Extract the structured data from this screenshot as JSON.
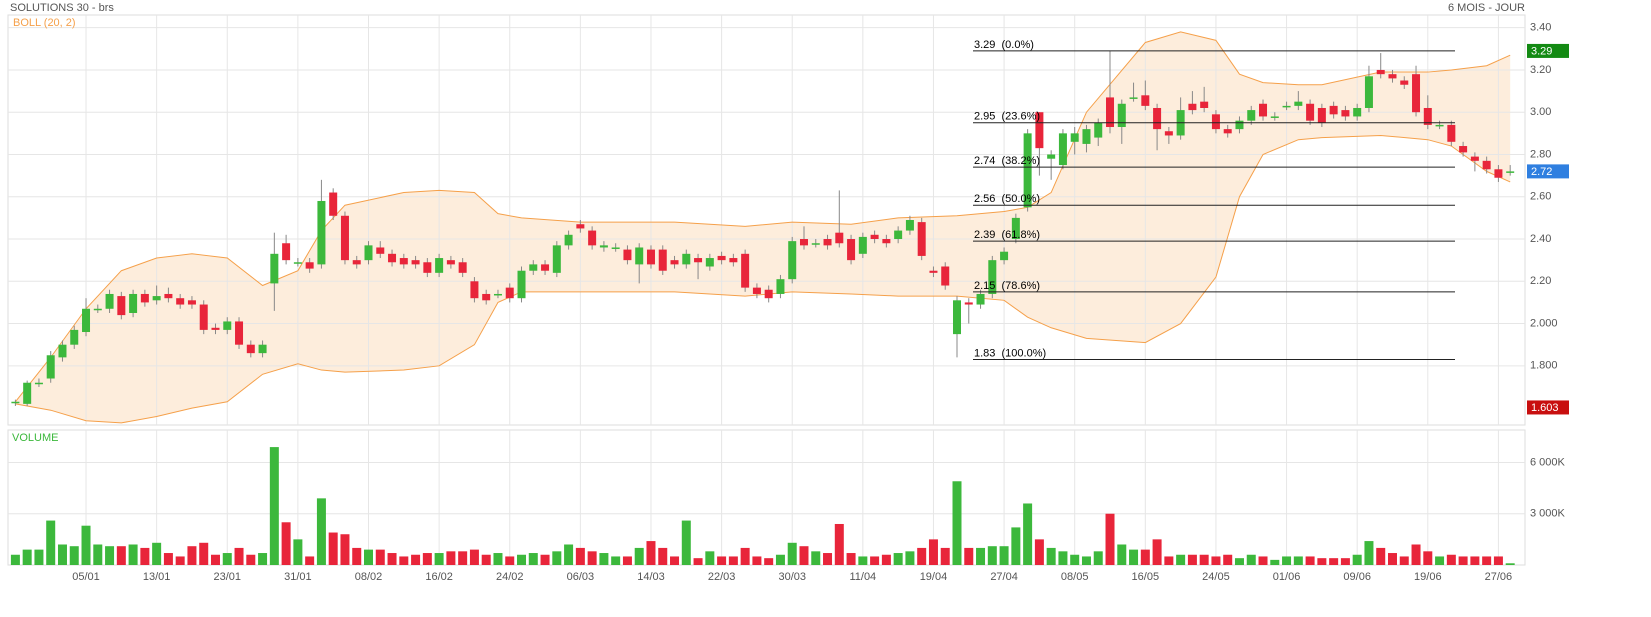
{
  "chart_data": {
    "type": "candlestick",
    "title": "SOLUTIONS 30 - brs",
    "period": "6 MOIS - JOUR",
    "indicator": "BOLL (20, 2)",
    "volume_title": "VOLUME",
    "up_color": "#3cb83c",
    "down_color": "#e8253a",
    "band_color": "#f5a04a",
    "band_fill": "#fde9d3",
    "categories": [
      null,
      null,
      null,
      null,
      null,
      null,
      "05/01",
      null,
      null,
      null,
      null,
      null,
      "13/01",
      null,
      null,
      null,
      null,
      null,
      "23/01",
      null,
      null,
      null,
      null,
      null,
      "31/01",
      null,
      null,
      null,
      null,
      null,
      "08/02",
      null,
      null,
      null,
      null,
      null,
      "16/02",
      null,
      null,
      null,
      null,
      null,
      "24/02",
      null,
      null,
      null,
      null,
      null,
      "06/03",
      null,
      null,
      null,
      null,
      null,
      "14/03",
      null,
      null,
      null,
      null,
      null,
      "22/03",
      null,
      null,
      null,
      null,
      null,
      "30/03",
      null,
      null,
      null,
      null,
      null,
      "11/04",
      null,
      null,
      null,
      null,
      null,
      "19/04",
      null,
      null,
      null,
      null,
      null,
      "27/04",
      null,
      null,
      null,
      null,
      null,
      "08/05",
      null,
      null,
      null,
      null,
      null,
      "16/05",
      null,
      null,
      null,
      null,
      null,
      "24/05",
      null,
      null,
      null,
      null,
      null,
      "01/06",
      null,
      null,
      null,
      null,
      null,
      "09/06",
      null,
      null,
      null,
      null,
      null,
      "19/06",
      null,
      null,
      null,
      null,
      null,
      "27/06",
      null
    ],
    "ohlc": [
      [
        1.63,
        1.64,
        1.61,
        1.63
      ],
      [
        1.62,
        1.73,
        1.61,
        1.72
      ],
      [
        1.72,
        1.74,
        1.7,
        1.72
      ],
      [
        1.74,
        1.87,
        1.72,
        1.85
      ],
      [
        1.84,
        1.92,
        1.82,
        1.9
      ],
      [
        1.9,
        1.99,
        1.88,
        1.97
      ],
      [
        1.96,
        2.12,
        1.94,
        2.07
      ],
      [
        2.07,
        2.09,
        2.05,
        2.07
      ],
      [
        2.07,
        2.16,
        2.05,
        2.14
      ],
      [
        2.13,
        2.15,
        2.02,
        2.04
      ],
      [
        2.05,
        2.16,
        2.03,
        2.14
      ],
      [
        2.14,
        2.16,
        2.08,
        2.1
      ],
      [
        2.11,
        2.18,
        2.09,
        2.13
      ],
      [
        2.14,
        2.17,
        2.1,
        2.12
      ],
      [
        2.12,
        2.14,
        2.07,
        2.09
      ],
      [
        2.11,
        2.13,
        2.07,
        2.09
      ],
      [
        2.09,
        2.11,
        1.95,
        1.97
      ],
      [
        1.98,
        2.0,
        1.95,
        1.97
      ],
      [
        1.97,
        2.03,
        1.95,
        2.01
      ],
      [
        2.01,
        2.03,
        1.88,
        1.9
      ],
      [
        1.9,
        1.92,
        1.84,
        1.86
      ],
      [
        1.86,
        1.92,
        1.84,
        1.9
      ],
      [
        2.19,
        2.43,
        2.06,
        2.33
      ],
      [
        2.38,
        2.42,
        2.28,
        2.3
      ],
      [
        2.29,
        2.31,
        2.27,
        2.29
      ],
      [
        2.29,
        2.31,
        2.24,
        2.26
      ],
      [
        2.28,
        2.68,
        2.26,
        2.58
      ],
      [
        2.62,
        2.64,
        2.49,
        2.51
      ],
      [
        2.51,
        2.53,
        2.28,
        2.3
      ],
      [
        2.3,
        2.32,
        2.26,
        2.28
      ],
      [
        2.3,
        2.39,
        2.28,
        2.37
      ],
      [
        2.36,
        2.39,
        2.31,
        2.33
      ],
      [
        2.33,
        2.35,
        2.27,
        2.29
      ],
      [
        2.31,
        2.33,
        2.26,
        2.28
      ],
      [
        2.3,
        2.32,
        2.26,
        2.28
      ],
      [
        2.29,
        2.31,
        2.22,
        2.24
      ],
      [
        2.24,
        2.33,
        2.22,
        2.31
      ],
      [
        2.3,
        2.32,
        2.26,
        2.28
      ],
      [
        2.29,
        2.31,
        2.22,
        2.24
      ],
      [
        2.2,
        2.22,
        2.1,
        2.12
      ],
      [
        2.14,
        2.16,
        2.09,
        2.11
      ],
      [
        2.14,
        2.16,
        2.12,
        2.14
      ],
      [
        2.17,
        2.19,
        2.1,
        2.12
      ],
      [
        2.12,
        2.27,
        2.1,
        2.25
      ],
      [
        2.25,
        2.3,
        2.23,
        2.28
      ],
      [
        2.28,
        2.3,
        2.23,
        2.25
      ],
      [
        2.24,
        2.39,
        2.22,
        2.37
      ],
      [
        2.37,
        2.44,
        2.35,
        2.42
      ],
      [
        2.47,
        2.49,
        2.43,
        2.45
      ],
      [
        2.44,
        2.46,
        2.35,
        2.37
      ],
      [
        2.36,
        2.39,
        2.34,
        2.37
      ],
      [
        2.36,
        2.38,
        2.34,
        2.36
      ],
      [
        2.35,
        2.37,
        2.28,
        2.3
      ],
      [
        2.28,
        2.38,
        2.19,
        2.36
      ],
      [
        2.35,
        2.37,
        2.26,
        2.28
      ],
      [
        2.35,
        2.37,
        2.23,
        2.25
      ],
      [
        2.3,
        2.32,
        2.26,
        2.28
      ],
      [
        2.28,
        2.35,
        2.26,
        2.33
      ],
      [
        2.31,
        2.33,
        2.21,
        2.29
      ],
      [
        2.27,
        2.33,
        2.25,
        2.31
      ],
      [
        2.32,
        2.34,
        2.28,
        2.3
      ],
      [
        2.31,
        2.33,
        2.27,
        2.29
      ],
      [
        2.33,
        2.35,
        2.15,
        2.17
      ],
      [
        2.17,
        2.19,
        2.12,
        2.14
      ],
      [
        2.16,
        2.18,
        2.1,
        2.12
      ],
      [
        2.14,
        2.23,
        2.12,
        2.21
      ],
      [
        2.21,
        2.41,
        2.19,
        2.39
      ],
      [
        2.4,
        2.46,
        2.35,
        2.37
      ],
      [
        2.38,
        2.4,
        2.36,
        2.38
      ],
      [
        2.4,
        2.42,
        2.35,
        2.37
      ],
      [
        2.43,
        2.63,
        2.36,
        2.38
      ],
      [
        2.4,
        2.42,
        2.28,
        2.3
      ],
      [
        2.33,
        2.43,
        2.31,
        2.41
      ],
      [
        2.42,
        2.44,
        2.38,
        2.4
      ],
      [
        2.4,
        2.42,
        2.36,
        2.38
      ],
      [
        2.4,
        2.46,
        2.38,
        2.44
      ],
      [
        2.44,
        2.51,
        2.42,
        2.49
      ],
      [
        2.48,
        2.5,
        2.3,
        2.32
      ],
      [
        2.25,
        2.27,
        2.22,
        2.24
      ],
      [
        2.27,
        2.29,
        2.16,
        2.18
      ],
      [
        1.95,
        2.13,
        1.84,
        2.11
      ],
      [
        2.1,
        2.12,
        2.0,
        2.09
      ],
      [
        2.09,
        2.16,
        2.07,
        2.14
      ],
      [
        2.14,
        2.32,
        2.12,
        2.3
      ],
      [
        2.3,
        2.36,
        2.28,
        2.34
      ],
      [
        2.4,
        2.52,
        2.38,
        2.5
      ],
      [
        2.55,
        2.92,
        2.53,
        2.9
      ],
      [
        3.0,
        3.0,
        2.7,
        2.83
      ],
      [
        2.78,
        2.82,
        2.68,
        2.8
      ],
      [
        2.75,
        2.92,
        2.73,
        2.9
      ],
      [
        2.86,
        2.93,
        2.8,
        2.9
      ],
      [
        2.85,
        2.94,
        2.81,
        2.92
      ],
      [
        2.88,
        2.97,
        2.84,
        2.95
      ],
      [
        3.07,
        3.29,
        2.9,
        2.93
      ],
      [
        2.93,
        3.06,
        2.85,
        3.04
      ],
      [
        3.07,
        3.14,
        3.05,
        3.07
      ],
      [
        3.08,
        3.15,
        3.01,
        3.03
      ],
      [
        3.02,
        3.04,
        2.82,
        2.92
      ],
      [
        2.91,
        2.93,
        2.85,
        2.89
      ],
      [
        2.89,
        3.07,
        2.87,
        3.01
      ],
      [
        3.04,
        3.1,
        2.99,
        3.01
      ],
      [
        3.05,
        3.12,
        3.0,
        3.02
      ],
      [
        2.99,
        3.01,
        2.9,
        2.92
      ],
      [
        2.92,
        2.94,
        2.88,
        2.9
      ],
      [
        2.92,
        2.98,
        2.9,
        2.96
      ],
      [
        2.96,
        3.03,
        2.94,
        3.01
      ],
      [
        3.04,
        3.06,
        2.96,
        2.98
      ],
      [
        2.98,
        3.0,
        2.96,
        2.98
      ],
      [
        3.03,
        3.05,
        3.01,
        3.03
      ],
      [
        3.03,
        3.1,
        3.01,
        3.05
      ],
      [
        3.04,
        3.06,
        2.94,
        2.96
      ],
      [
        3.02,
        3.04,
        2.93,
        2.95
      ],
      [
        3.03,
        3.05,
        2.97,
        2.99
      ],
      [
        3.01,
        3.03,
        2.96,
        2.98
      ],
      [
        2.98,
        3.04,
        2.96,
        3.02
      ],
      [
        3.02,
        3.22,
        3.0,
        3.17
      ],
      [
        3.2,
        3.28,
        3.16,
        3.18
      ],
      [
        3.18,
        3.2,
        3.14,
        3.16
      ],
      [
        3.15,
        3.17,
        3.11,
        3.13
      ],
      [
        3.18,
        3.22,
        2.98,
        3.0
      ],
      [
        3.02,
        3.08,
        2.92,
        2.94
      ],
      [
        2.94,
        2.96,
        2.92,
        2.94
      ],
      [
        2.94,
        2.96,
        2.84,
        2.86
      ],
      [
        2.84,
        2.86,
        2.79,
        2.81
      ],
      [
        2.79,
        2.81,
        2.72,
        2.77
      ],
      [
        2.77,
        2.79,
        2.71,
        2.73
      ],
      [
        2.73,
        2.75,
        2.67,
        2.69
      ],
      [
        2.72,
        2.75,
        2.7,
        2.72
      ]
    ],
    "volume": [
      600,
      900,
      900,
      2600,
      1200,
      1100,
      2300,
      1200,
      1100,
      1100,
      1200,
      1000,
      1300,
      700,
      500,
      1100,
      1300,
      600,
      700,
      1000,
      600,
      700,
      6900,
      2500,
      1500,
      500,
      3900,
      1900,
      1800,
      1000,
      900,
      900,
      700,
      500,
      600,
      700,
      700,
      800,
      800,
      900,
      600,
      700,
      500,
      600,
      700,
      600,
      800,
      1200,
      1000,
      800,
      700,
      500,
      500,
      1000,
      1400,
      1000,
      500,
      2600,
      400,
      800,
      500,
      500,
      1000,
      500,
      400,
      600,
      1300,
      1100,
      800,
      700,
      2400,
      700,
      500,
      500,
      600,
      700,
      800,
      1000,
      1500,
      1000,
      4900,
      1000,
      1000,
      1100,
      1100,
      2200,
      3600,
      1500,
      1000,
      800,
      600,
      500,
      800,
      3000,
      1200,
      900,
      900,
      1500,
      500,
      600,
      600,
      600,
      500,
      600,
      400,
      600,
      500,
      300,
      500,
      500,
      500,
      400,
      400,
      400,
      600,
      1400,
      1000,
      700,
      500,
      1200,
      800,
      500,
      600,
      500,
      500,
      500,
      500,
      100
    ],
    "boll": {
      "x": [
        0,
        3,
        6,
        9,
        12,
        15,
        18,
        21,
        24,
        26,
        28,
        33,
        36,
        39,
        41,
        43,
        48,
        56,
        62,
        66,
        71,
        75,
        80,
        84,
        86,
        88,
        91,
        96,
        99,
        102,
        104,
        106,
        109,
        111,
        116,
        120,
        122,
        125,
        127
      ],
      "upper": [
        1.63,
        1.84,
        2.07,
        2.25,
        2.31,
        2.33,
        2.31,
        2.18,
        2.25,
        2.44,
        2.56,
        2.62,
        2.63,
        2.62,
        2.52,
        2.5,
        2.48,
        2.48,
        2.46,
        2.48,
        2.47,
        2.5,
        2.51,
        2.53,
        2.55,
        2.62,
        3.0,
        3.33,
        3.38,
        3.34,
        3.18,
        3.14,
        3.13,
        3.13,
        3.19,
        3.19,
        3.2,
        3.22,
        3.27
      ],
      "lower": [
        1.62,
        1.59,
        1.54,
        1.53,
        1.56,
        1.6,
        1.63,
        1.76,
        1.81,
        1.78,
        1.77,
        1.78,
        1.8,
        1.9,
        2.1,
        2.15,
        2.15,
        2.15,
        2.13,
        2.15,
        2.14,
        2.13,
        2.13,
        2.11,
        2.03,
        1.98,
        1.93,
        1.91,
        2.0,
        2.22,
        2.6,
        2.8,
        2.87,
        2.88,
        2.89,
        2.87,
        2.84,
        2.72,
        2.67
      ]
    },
    "fib": [
      {
        "value": 3.29,
        "label": "3.29  (0.0%)"
      },
      {
        "value": 2.95,
        "label": "2.95  (23.6%)"
      },
      {
        "value": 2.74,
        "label": "2.74  (38.2%)"
      },
      {
        "value": 2.56,
        "label": "2.56  (50.0%)"
      },
      {
        "value": 2.39,
        "label": "2.39  (61.8%)"
      },
      {
        "value": 2.15,
        "label": "2.15  (78.6%)"
      },
      {
        "value": 1.83,
        "label": "1.83  (100.0%)"
      }
    ],
    "badges": [
      {
        "value": 3.29,
        "color": "#138a13"
      },
      {
        "value": 2.72,
        "color": "#2f7fe0"
      },
      {
        "value": 1.603,
        "color": "#c80f0f"
      }
    ],
    "ylim": [
      1.52,
      3.46
    ],
    "yticks": [
      {
        "value": 3.4,
        "label": "3.40"
      },
      {
        "value": 3.2,
        "label": "3.20"
      },
      {
        "value": 3.0,
        "label": "3.00"
      },
      {
        "value": 2.8,
        "label": "2.80"
      },
      {
        "value": 2.6,
        "label": "2.60"
      },
      {
        "value": 2.4,
        "label": "2.40"
      },
      {
        "value": 2.2,
        "label": "2.20"
      },
      {
        "value": 2.0,
        "label": "2.000"
      },
      {
        "value": 1.8,
        "label": "1.800"
      }
    ],
    "vlim": [
      0,
      7900
    ],
    "vticks": [
      {
        "value": 6000,
        "label": "6 000K"
      },
      {
        "value": 3000,
        "label": "3 000K"
      }
    ],
    "grid": true
  }
}
